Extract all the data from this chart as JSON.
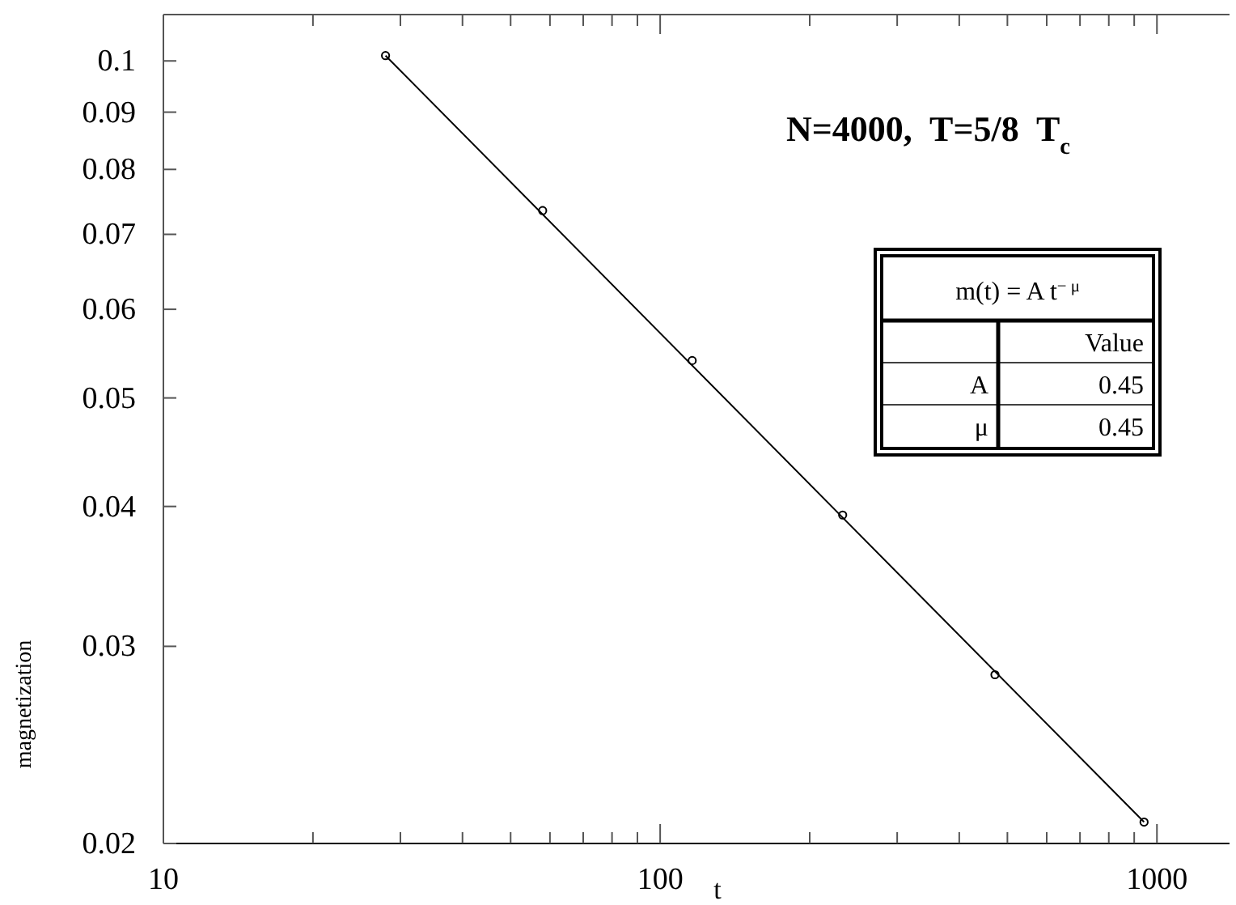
{
  "chart_data": {
    "type": "scatter",
    "title": "N=4000,  T=5/8  T$_{c}$",
    "xlabel": "t",
    "ylabel": "magnetization",
    "log": "xy",
    "grid": false,
    "marker": "circle",
    "line_style": "solid",
    "xlim": [
      10,
      1400
    ],
    "ylim": [
      0.02,
      0.11
    ],
    "xticks": [
      10,
      {
        "value": 20,
        "label": null
      },
      {
        "value": 30,
        "label": null
      },
      {
        "value": 40,
        "label": null
      },
      {
        "value": 50,
        "label": null
      },
      {
        "value": 60,
        "label": null
      },
      {
        "value": 70,
        "label": null
      },
      {
        "value": 80,
        "label": null
      },
      {
        "value": 90,
        "label": null
      },
      100,
      {
        "value": 200,
        "label": null
      },
      {
        "value": 300,
        "label": null
      },
      {
        "value": 400,
        "label": null
      },
      {
        "value": 500,
        "label": null
      },
      {
        "value": 600,
        "label": null
      },
      {
        "value": 700,
        "label": null
      },
      {
        "value": 800,
        "label": null
      },
      {
        "value": 900,
        "label": null
      },
      1000
    ],
    "yticks": [
      0.02,
      0.03,
      0.04,
      0.05,
      0.06,
      0.07,
      0.08,
      0.09,
      0.1
    ],
    "series": [
      {
        "color": "#000000",
        "x": [
          28,
          58,
          116,
          233,
          472,
          942
        ],
        "values": [
          0.1011,
          0.0735,
          0.054,
          0.0393,
          0.0283,
          0.0209
        ]
      },
      {
        "type": "line",
        "color": "#000000",
        "marker": "none",
        "x": [
          28,
          942
        ],
        "values": [
          0.1011,
          0.0209
        ]
      }
    ],
    "annotations": [
      "m(t) = A t$^{− μ}$",
      "Value",
      "A",
      "0.45",
      "μ",
      "0.45"
    ]
  }
}
